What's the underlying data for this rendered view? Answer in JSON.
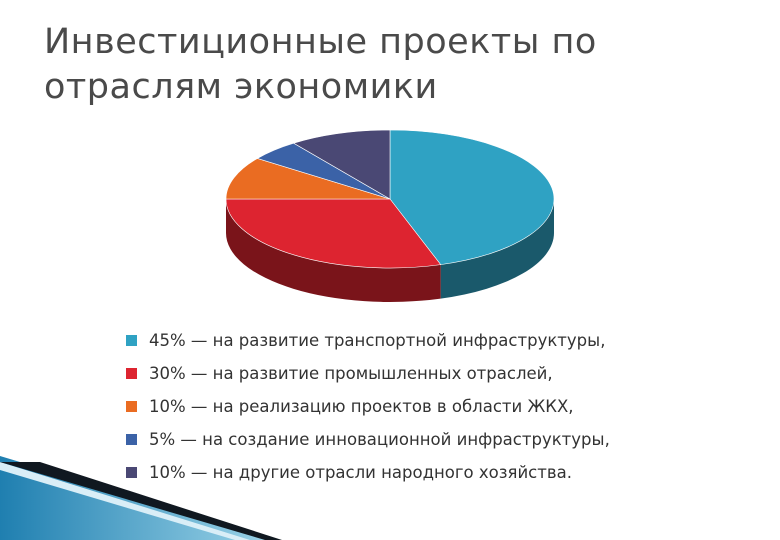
{
  "title": "Инвестиционные проекты по отраслям экономики",
  "chart_data": {
    "type": "pie",
    "title": "",
    "style": "3d",
    "slices": [
      {
        "value": 45,
        "color": "#2fa2c3",
        "legend": "45% — на развитие транспортной инфраструктуры,"
      },
      {
        "value": 30,
        "color": "#dd2430",
        "legend": "30% — на развитие промышленных отраслей,"
      },
      {
        "value": 10,
        "color": "#ea6c22",
        "legend": "10% — на реализацию проектов в области ЖКХ,"
      },
      {
        "value": 5,
        "color": "#3b62a7",
        "legend": "5% — на создание инновационной инфраструктуры,"
      },
      {
        "value": 10,
        "color": "#4a4874",
        "legend": "10% — на другие отрасли народного хозяйства."
      }
    ],
    "legend_position": "bottom"
  }
}
